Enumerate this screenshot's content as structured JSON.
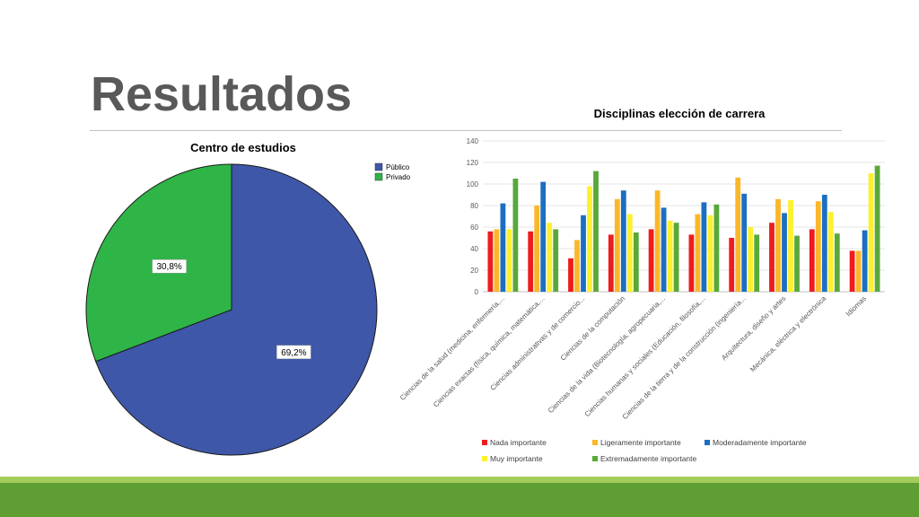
{
  "slide": {
    "title": "Resultados"
  },
  "chart_data": [
    {
      "type": "pie",
      "title": "Centro de estudios",
      "labels": [
        "Público",
        "Privado"
      ],
      "values": [
        69.2,
        30.8
      ],
      "value_labels": [
        "69,2%",
        "30,8%"
      ],
      "colors": [
        "#3f57a8",
        "#2fb447"
      ],
      "legend": "top-right"
    },
    {
      "type": "bar",
      "title": "Disciplinas elección de carrera",
      "categories": [
        "Ciencias de la salud (medicina, enfermería,...",
        "Ciencias exactas (física, química, matemática,...",
        "Ciencias administrativas y de comercio...",
        "Ciencias de la computación",
        "Ciencias de la vida (Biotecnología, agropecuaria,...",
        "Ciencias humanas y sociales (Educación, filosofía,...",
        "Ciencias de la tierra y de la construcción (ingeniería...",
        "Arquitectura, diseño y artes",
        "Mecánica, eléctrica y electrónica",
        "Idiomas"
      ],
      "series": [
        {
          "name": "Nada importante",
          "color": "#ee1c1c",
          "values": [
            56,
            56,
            31,
            53,
            58,
            53,
            50,
            64,
            58,
            38
          ]
        },
        {
          "name": "Ligeramente importante",
          "color": "#fbb72a",
          "values": [
            58,
            80,
            48,
            86,
            94,
            72,
            106,
            86,
            84,
            38
          ]
        },
        {
          "name": "Moderadamente importante",
          "color": "#1c6fc0",
          "values": [
            82,
            102,
            71,
            94,
            78,
            83,
            91,
            73,
            90,
            57
          ]
        },
        {
          "name": "Muy importante",
          "color": "#fdf02e",
          "values": [
            58,
            64,
            98,
            72,
            66,
            71,
            60,
            85,
            74,
            110
          ]
        },
        {
          "name": "Extremadamente importante",
          "color": "#59a83a",
          "values": [
            105,
            58,
            112,
            55,
            64,
            81,
            53,
            52,
            54,
            117
          ]
        }
      ],
      "ylim": [
        0,
        140
      ],
      "yticks": [
        0,
        20,
        40,
        60,
        80,
        100,
        120,
        140
      ],
      "grid": true,
      "legend": "bottom"
    }
  ]
}
